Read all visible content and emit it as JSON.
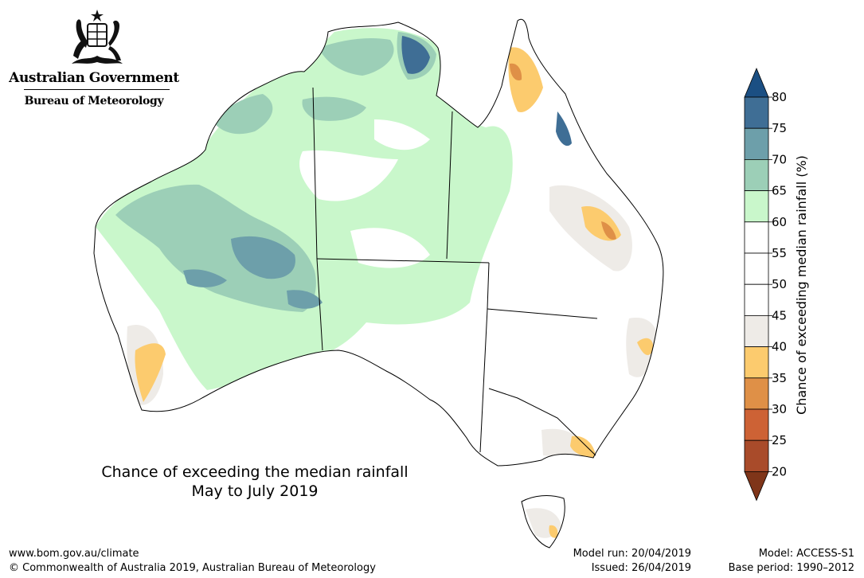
{
  "header": {
    "government": "Australian Government",
    "bureau": "Bureau of Meteorology"
  },
  "map": {
    "title_line1": "Chance of exceeding the median rainfall",
    "title_line2": "May to July 2019",
    "region": "Australia"
  },
  "legend": {
    "title": "Chance of exceeding median rainfall (%)",
    "ticks": [
      "80",
      "75",
      "70",
      "65",
      "60",
      "55",
      "50",
      "45",
      "40",
      "35",
      "30",
      "25",
      "20"
    ],
    "bins": [
      {
        "range": "75-80",
        "color": "#3f6e95"
      },
      {
        "range": "70-75",
        "color": "#6d9faa"
      },
      {
        "range": "65-70",
        "color": "#9ccfb7"
      },
      {
        "range": "60-65",
        "color": "#c9f7cb"
      },
      {
        "range": "55-60",
        "color": "#ffffff"
      },
      {
        "range": "50-55",
        "color": "#ffffff"
      },
      {
        "range": "45-50",
        "color": "#ffffff"
      },
      {
        "range": "40-45",
        "color": "#eeebe7"
      },
      {
        "range": "35-40",
        "color": "#fccb6e"
      },
      {
        "range": "30-35",
        "color": "#df9047"
      },
      {
        "range": "25-30",
        "color": "#cd6235"
      },
      {
        "range": "20-25",
        "color": "#a94b2a"
      }
    ],
    "over_color": "#1b4f83",
    "under_color": "#7f3519"
  },
  "footer": {
    "url": "www.bom.gov.au/climate",
    "copyright": "© Commonwealth of Australia 2019, Australian Bureau of Meteorology",
    "model_run": "Model run: 20/04/2019",
    "issued": "Issued: 26/04/2019",
    "model": "Model: ACCESS-S1",
    "base_period": "Base period: 1990–2012"
  }
}
